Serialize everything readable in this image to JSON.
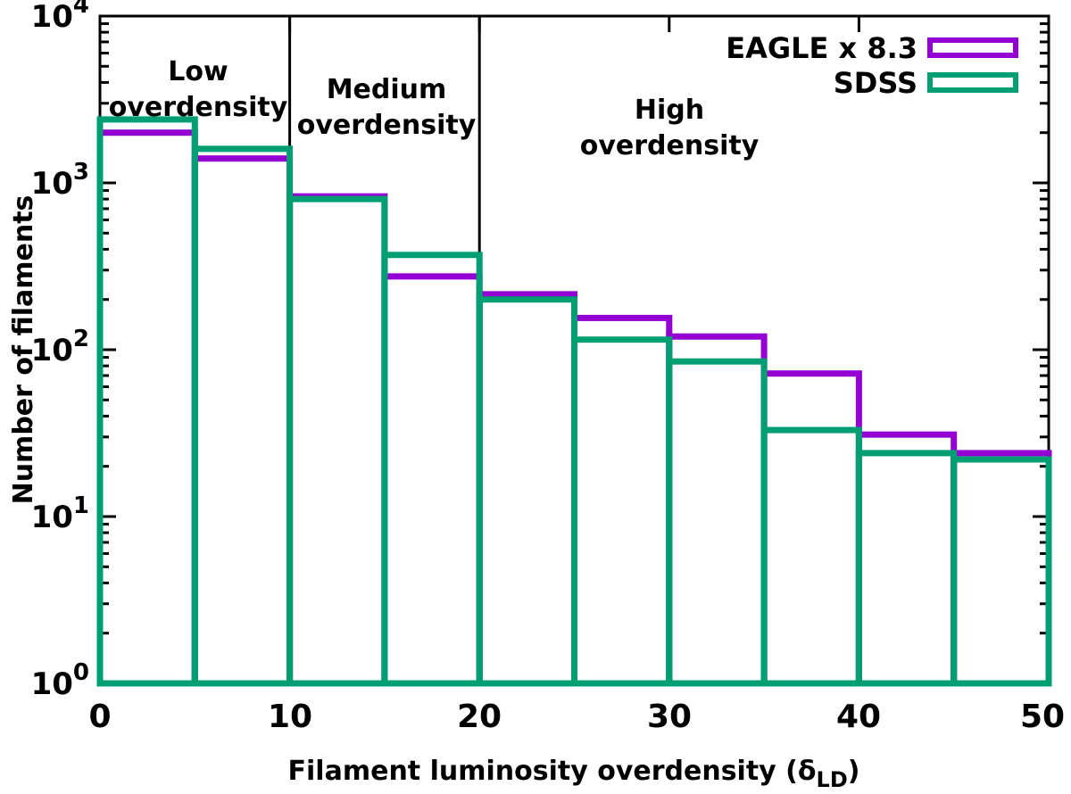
{
  "figure": {
    "name": "filament-luminosity-overdensity-histogram"
  },
  "chart_data": {
    "type": "bar",
    "subtype": "step-outline-histogram",
    "title": "",
    "xlabel": "Filament luminosity overdensity (δLD)",
    "ylabel": "Number of filaments",
    "xlim": [
      0,
      50
    ],
    "ylim": [
      1,
      10000
    ],
    "yscale": "log",
    "xscale": "linear",
    "grid": false,
    "legend_position": "top-right",
    "bin_edges": [
      0,
      5,
      10,
      15,
      20,
      25,
      30,
      35,
      40,
      45,
      50
    ],
    "series": [
      {
        "name": "EAGLE x 8.3",
        "color": "#9400d3",
        "values": [
          2000,
          1400,
          830,
          275,
          215,
          155,
          120,
          72,
          31,
          24
        ]
      },
      {
        "name": "SDSS",
        "color": "#009e73",
        "values": [
          2400,
          1600,
          800,
          370,
          200,
          115,
          85,
          33,
          24,
          22
        ]
      }
    ],
    "region_dividers": [
      {
        "x": 10,
        "to_value": 1600
      },
      {
        "x": 20,
        "to_value": 370
      }
    ],
    "annotations": [
      {
        "lines": [
          "Low",
          "overdensity"
        ]
      },
      {
        "lines": [
          "Medium",
          "overdensity"
        ]
      },
      {
        "lines": [
          "High",
          "overdensity"
        ]
      }
    ]
  },
  "axes": {
    "x": {
      "ticks": [
        "0",
        "10",
        "20",
        "30",
        "40",
        "50"
      ],
      "title_prefix": "Filament luminosity overdensity (",
      "title_delta": "δ",
      "title_sub": "LD",
      "title_suffix": ")"
    },
    "y": {
      "title": "Number of filaments",
      "ticks": [
        {
          "base": "10",
          "exp": "0"
        },
        {
          "base": "10",
          "exp": "1"
        },
        {
          "base": "10",
          "exp": "2"
        },
        {
          "base": "10",
          "exp": "3"
        },
        {
          "base": "10",
          "exp": "4"
        }
      ]
    }
  },
  "legend": {
    "entries": [
      {
        "label": "EAGLE x 8.3"
      },
      {
        "label": "SDSS"
      }
    ]
  },
  "colors": {
    "frame": "#000000",
    "eagle": "#9400d3",
    "sdss": "#009e73"
  }
}
